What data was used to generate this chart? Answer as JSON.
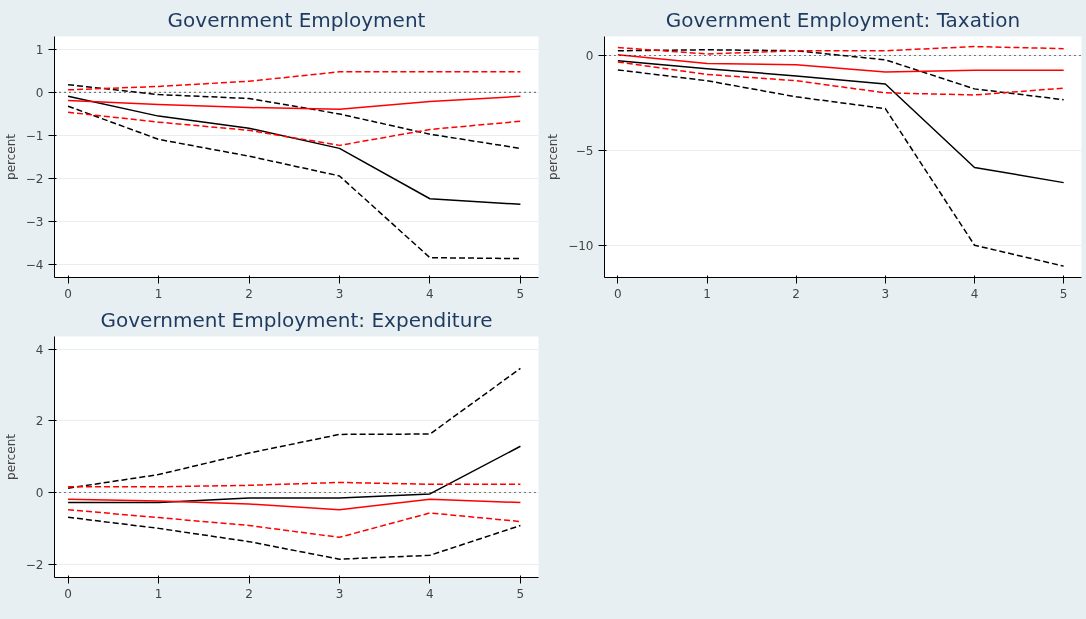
{
  "chart_data": [
    {
      "type": "line",
      "title": "Government Employment",
      "ylabel": "percent",
      "x": [
        0,
        1,
        2,
        3,
        4,
        5
      ],
      "xlim": [
        -0.15,
        5.2
      ],
      "xticks": [
        0,
        1,
        2,
        3,
        4,
        5
      ],
      "ylim": [
        -4.3,
        1.3
      ],
      "yticks": [
        -4,
        -3,
        -2,
        -1,
        0,
        1
      ],
      "grid": "y",
      "marker": "none",
      "ref_lines": [
        {
          "axis": "y",
          "value": 0,
          "color": "#000000",
          "line_style": "dotted"
        }
      ],
      "series": [
        {
          "color": "#000000",
          "line_style": "solid",
          "values": [
            -0.09,
            -0.55,
            -0.83,
            -1.3,
            -2.47,
            -2.6
          ]
        },
        {
          "color": "#000000",
          "line_style": "dashed",
          "values": [
            0.18,
            -0.05,
            -0.14,
            -0.5,
            -0.97,
            -1.3
          ]
        },
        {
          "color": "#000000",
          "line_style": "dashed",
          "values": [
            -0.32,
            -1.09,
            -1.48,
            -1.94,
            -3.84,
            -3.86
          ]
        },
        {
          "color": "#ff0000",
          "line_style": "solid",
          "values": [
            -0.19,
            -0.28,
            -0.35,
            -0.39,
            -0.21,
            -0.09
          ]
        },
        {
          "color": "#ff0000",
          "line_style": "dashed",
          "values": [
            0.06,
            0.14,
            0.26,
            0.48,
            0.48,
            0.48
          ]
        },
        {
          "color": "#ff0000",
          "line_style": "dashed",
          "values": [
            -0.46,
            -0.69,
            -0.88,
            -1.23,
            -0.86,
            -0.67
          ]
        }
      ]
    },
    {
      "type": "line",
      "title": "Government Employment: Taxation",
      "ylabel": "percent",
      "x": [
        0,
        1,
        2,
        3,
        4,
        5
      ],
      "xlim": [
        -0.15,
        5.2
      ],
      "xticks": [
        0,
        1,
        2,
        3,
        4,
        5
      ],
      "ylim": [
        -11.7,
        1.0
      ],
      "yticks": [
        -10,
        -5,
        0
      ],
      "grid": "y",
      "marker": "none",
      "ref_lines": [
        {
          "axis": "y",
          "value": 0,
          "color": "#000000",
          "line_style": "dotted"
        }
      ],
      "series": [
        {
          "color": "#000000",
          "line_style": "solid",
          "values": [
            -0.28,
            -0.7,
            -1.08,
            -1.5,
            -5.9,
            -6.7
          ]
        },
        {
          "color": "#000000",
          "line_style": "dashed",
          "values": [
            0.25,
            0.3,
            0.25,
            -0.23,
            -1.76,
            -2.33
          ]
        },
        {
          "color": "#000000",
          "line_style": "dashed",
          "values": [
            -0.76,
            -1.33,
            -2.18,
            -2.8,
            -10.0,
            -11.1
          ]
        },
        {
          "color": "#ff0000",
          "line_style": "solid",
          "values": [
            0.04,
            -0.42,
            -0.49,
            -0.87,
            -0.78,
            -0.78
          ]
        },
        {
          "color": "#ff0000",
          "line_style": "dashed",
          "values": [
            0.42,
            0.08,
            0.25,
            0.25,
            0.47,
            0.36
          ]
        },
        {
          "color": "#ff0000",
          "line_style": "dashed",
          "values": [
            -0.34,
            -1.0,
            -1.33,
            -1.97,
            -2.08,
            -1.72
          ]
        }
      ]
    },
    {
      "type": "line",
      "title": "Government Employment: Expenditure",
      "ylabel": "percent",
      "x": [
        0,
        1,
        2,
        3,
        4,
        5
      ],
      "xlim": [
        -0.15,
        5.2
      ],
      "xticks": [
        0,
        1,
        2,
        3,
        4,
        5
      ],
      "ylim": [
        -2.37,
        4.35
      ],
      "yticks": [
        -2,
        0,
        2,
        4
      ],
      "grid": "y",
      "marker": "none",
      "ref_lines": [
        {
          "axis": "y",
          "value": 0,
          "color": "#000000",
          "line_style": "dotted"
        }
      ],
      "series": [
        {
          "color": "#000000",
          "line_style": "solid",
          "values": [
            -0.28,
            -0.28,
            -0.15,
            -0.15,
            -0.04,
            1.29
          ]
        },
        {
          "color": "#000000",
          "line_style": "dashed",
          "values": [
            0.12,
            0.5,
            1.1,
            1.62,
            1.63,
            3.46
          ]
        },
        {
          "color": "#000000",
          "line_style": "dashed",
          "values": [
            -0.69,
            -1.0,
            -1.37,
            -1.86,
            -1.75,
            -0.92
          ]
        },
        {
          "color": "#ff0000",
          "line_style": "solid",
          "values": [
            -0.19,
            -0.24,
            -0.32,
            -0.48,
            -0.19,
            -0.28
          ]
        },
        {
          "color": "#ff0000",
          "line_style": "dashed",
          "values": [
            0.16,
            0.16,
            0.2,
            0.28,
            0.23,
            0.23
          ]
        },
        {
          "color": "#ff0000",
          "line_style": "dashed",
          "values": [
            -0.48,
            -0.7,
            -0.92,
            -1.25,
            -0.57,
            -0.81
          ]
        }
      ]
    }
  ]
}
